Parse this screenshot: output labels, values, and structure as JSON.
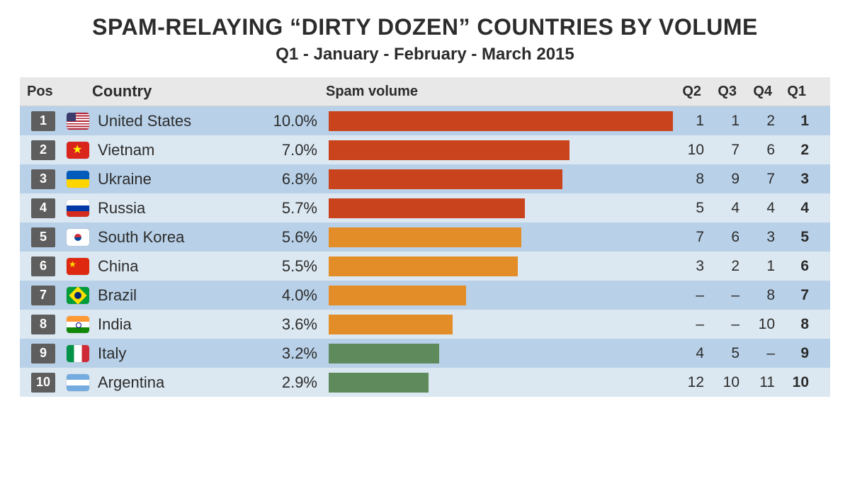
{
  "title": "SPAM-RELAYING “DIRTY DOZEN” COUNTRIES BY VOLUME",
  "subtitle": "Q1 - January - February - March 2015",
  "headers": {
    "pos": "Pos",
    "country": "Country",
    "vol": "Spam volume",
    "q2": "Q2",
    "q3": "Q3",
    "q4": "Q4",
    "q1": "Q1"
  },
  "chart": {
    "type": "bar",
    "bar_max_pct": 10.0,
    "row_colors": {
      "even": "#b9d1e8",
      "odd": "#dce8f1"
    },
    "header_bg": "#e8e8e8",
    "badge_bg": "#5e5e5e",
    "bar_colors": {
      "high": "#c9441c",
      "mid": "#e28d27",
      "low": "#5f8a5b"
    }
  },
  "rows": [
    {
      "pos": "1",
      "flag": "f-us",
      "country": "United States",
      "pct": "10.0%",
      "val": 10.0,
      "color": "high",
      "q2": "1",
      "q3": "1",
      "q4": "2",
      "q1": "1"
    },
    {
      "pos": "2",
      "flag": "f-vn",
      "country": "Vietnam",
      "pct": "7.0%",
      "val": 7.0,
      "color": "high",
      "q2": "10",
      "q3": "7",
      "q4": "6",
      "q1": "2"
    },
    {
      "pos": "3",
      "flag": "f-ua",
      "country": "Ukraine",
      "pct": "6.8%",
      "val": 6.8,
      "color": "high",
      "q2": "8",
      "q3": "9",
      "q4": "7",
      "q1": "3"
    },
    {
      "pos": "4",
      "flag": "f-ru",
      "country": "Russia",
      "pct": "5.7%",
      "val": 5.7,
      "color": "high",
      "q2": "5",
      "q3": "4",
      "q4": "4",
      "q1": "4"
    },
    {
      "pos": "5",
      "flag": "f-kr",
      "country": "South Korea",
      "pct": "5.6%",
      "val": 5.6,
      "color": "mid",
      "q2": "7",
      "q3": "6",
      "q4": "3",
      "q1": "5"
    },
    {
      "pos": "6",
      "flag": "f-cn",
      "country": "China",
      "pct": "5.5%",
      "val": 5.5,
      "color": "mid",
      "q2": "3",
      "q3": "2",
      "q4": "1",
      "q1": "6"
    },
    {
      "pos": "7",
      "flag": "f-br",
      "country": "Brazil",
      "pct": "4.0%",
      "val": 4.0,
      "color": "mid",
      "q2": "–",
      "q3": "–",
      "q4": "8",
      "q1": "7"
    },
    {
      "pos": "8",
      "flag": "f-in",
      "country": "India",
      "pct": "3.6%",
      "val": 3.6,
      "color": "mid",
      "q2": "–",
      "q3": "–",
      "q4": "10",
      "q1": "8"
    },
    {
      "pos": "9",
      "flag": "f-it",
      "country": "Italy",
      "pct": "3.2%",
      "val": 3.2,
      "color": "low",
      "q2": "4",
      "q3": "5",
      "q4": "–",
      "q1": "9"
    },
    {
      "pos": "10",
      "flag": "f-ar",
      "country": "Argentina",
      "pct": "2.9%",
      "val": 2.9,
      "color": "low",
      "q2": "12",
      "q3": "10",
      "q4": "11",
      "q1": "10"
    }
  ]
}
